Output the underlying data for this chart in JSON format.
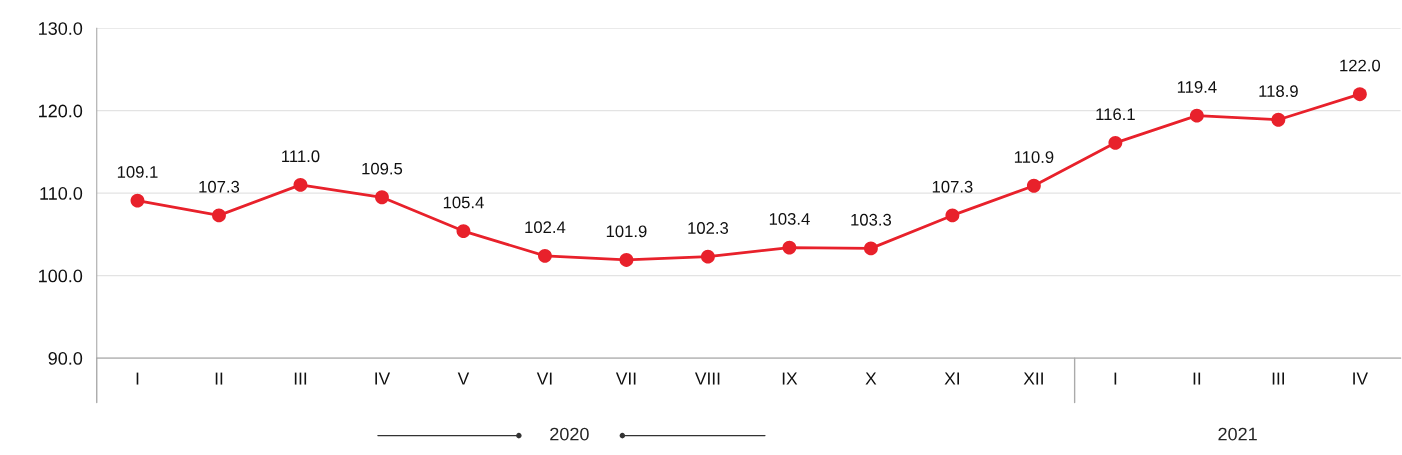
{
  "chart_data": {
    "type": "line",
    "categories": [
      "I",
      "II",
      "III",
      "IV",
      "V",
      "VI",
      "VII",
      "VIII",
      "IX",
      "X",
      "XI",
      "XII",
      "I",
      "II",
      "III",
      "IV"
    ],
    "series": [
      {
        "color": "#e8212b",
        "values": [
          109.1,
          107.3,
          111.0,
          109.5,
          105.4,
          102.4,
          101.9,
          102.3,
          103.4,
          103.3,
          107.3,
          110.9,
          116.1,
          119.4,
          118.9,
          122.0
        ],
        "value_labels": [
          "109.1",
          "107.3",
          "111.0",
          "109.5",
          "105.4",
          "102.4",
          "101.9",
          "102.3",
          "103.4",
          "103.3",
          "107.3",
          "110.9",
          "116.1",
          "119.4",
          "118.9",
          "122.0"
        ]
      }
    ],
    "ylim": [
      90,
      130
    ],
    "yticks": [
      {
        "value": 90,
        "label": "90.0"
      },
      {
        "value": 100,
        "label": "100.0"
      },
      {
        "value": 110,
        "label": "110.0"
      },
      {
        "value": 120,
        "label": "120.0"
      },
      {
        "value": 130,
        "label": "130.0"
      }
    ],
    "grid": "y",
    "marker": "circle",
    "line_style": "solid",
    "legend": false,
    "annotations": [
      "2020",
      "2021"
    ]
  }
}
